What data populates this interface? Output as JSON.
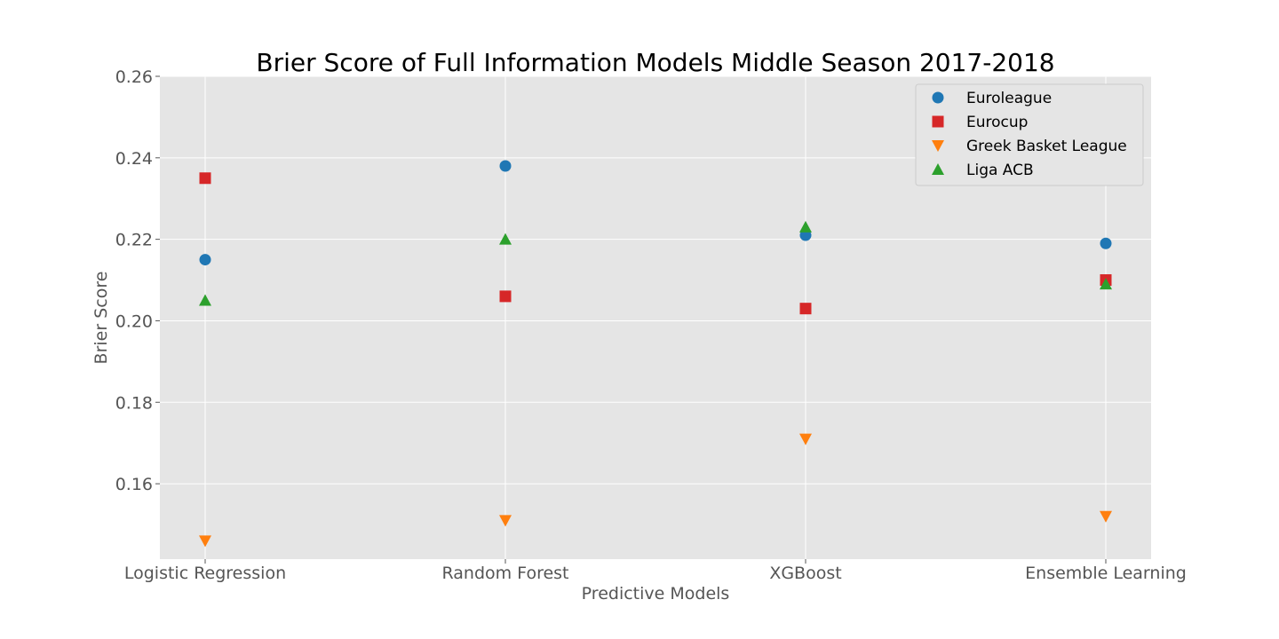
{
  "chart_data": {
    "type": "scatter",
    "title": "Brier Score of Full Information Models Middle Season 2017-2018",
    "xlabel": "Predictive Models",
    "ylabel": "Brier Score",
    "categories": [
      "Logistic Regression",
      "Random Forest",
      "XGBoost",
      "Ensemble Learning"
    ],
    "ylim": [
      0.1415,
      0.26
    ],
    "yticks": [
      0.16,
      0.18,
      0.2,
      0.22,
      0.24,
      0.26
    ],
    "ytick_labels": [
      "0.16",
      "0.18",
      "0.20",
      "0.22",
      "0.24",
      "0.26"
    ],
    "grid": true,
    "legend_position": "top-right",
    "series": [
      {
        "name": "Euroleague",
        "marker": "circle",
        "color": "#1f77b4",
        "values": [
          0.215,
          0.238,
          0.221,
          0.219
        ]
      },
      {
        "name": "Eurocup",
        "marker": "square",
        "color": "#d62728",
        "values": [
          0.235,
          0.206,
          0.203,
          0.21
        ]
      },
      {
        "name": "Greek Basket League",
        "marker": "triangle-down",
        "color": "#ff7f0e",
        "values": [
          0.146,
          0.151,
          0.171,
          0.152
        ]
      },
      {
        "name": "Liga ACB",
        "marker": "triangle-up",
        "color": "#2ca02c",
        "values": [
          0.205,
          0.22,
          0.223,
          0.209
        ]
      }
    ]
  }
}
